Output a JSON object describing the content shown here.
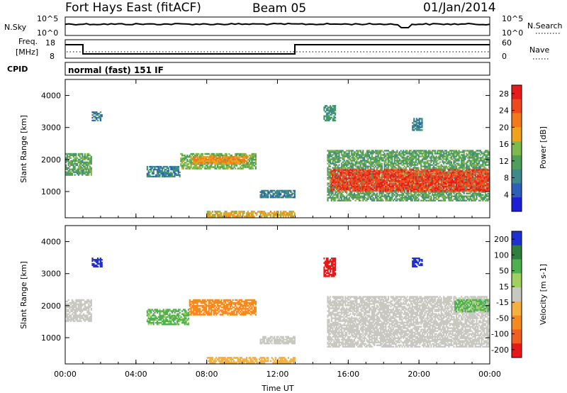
{
  "header": {
    "radar": "Fort Hays East (fitACF)",
    "beam": "Beam 05",
    "date": "01/Jan/2014"
  },
  "top_panel": {
    "left_label": "N.Sky",
    "left_ticks": [
      "10^5",
      "10^0"
    ],
    "right_label": "N.Search",
    "right_ticks": [
      "10^5",
      "10^0"
    ]
  },
  "freq_panel": {
    "left_label_1": "Freq.",
    "left_label_2": "[MHz]",
    "left_ticks": [
      "18",
      "8"
    ],
    "right_label": "Nave",
    "right_ticks": [
      "60",
      "0"
    ]
  },
  "cpid": {
    "label": "CPID",
    "text": "normal (fast) 151 IF"
  },
  "colors": {
    "power_scale": [
      "#1f1fd6",
      "#2b5fb8",
      "#3d8a8a",
      "#4f9f5a",
      "#7fb84b",
      "#f0a21e",
      "#f27a1a",
      "#ef4a1f",
      "#e81b1b"
    ],
    "velocity_scale": [
      "#1f2fd0",
      "#2e7e3e",
      "#4fb04f",
      "#9fd060",
      "#c8c8c0",
      "#f6b040",
      "#f58b1f",
      "#f2601f",
      "#e81818"
    ]
  },
  "chart_data": [
    {
      "type": "heatmap",
      "title": "",
      "xlabel": "Time UT",
      "ylabel": "Slant Range [km]",
      "x_ticks": [
        "00:00",
        "04:00",
        "08:00",
        "12:00",
        "16:00",
        "20:00",
        "00:00"
      ],
      "x_range_hours": [
        0,
        24
      ],
      "ylim": [
        180,
        4500
      ],
      "y_ticks": [
        1000,
        2000,
        3000,
        4000
      ],
      "colorbar": {
        "label": "Power [dB]",
        "ticks": [
          4,
          8,
          12,
          16,
          20,
          24,
          28
        ],
        "range": [
          0,
          30
        ]
      },
      "regions": [
        {
          "t0": 0.0,
          "t1": 1.5,
          "r0": 1500,
          "r1": 2200,
          "value": 12
        },
        {
          "t0": 1.5,
          "t1": 2.1,
          "r0": 3200,
          "r1": 3500,
          "value": 8
        },
        {
          "t0": 4.6,
          "t1": 6.5,
          "r0": 1450,
          "r1": 1800,
          "value": 8
        },
        {
          "t0": 6.5,
          "t1": 10.8,
          "r0": 1700,
          "r1": 2200,
          "value": 14
        },
        {
          "t0": 7.2,
          "t1": 10.3,
          "r0": 1850,
          "r1": 2100,
          "value": 20
        },
        {
          "t0": 11.0,
          "t1": 13.0,
          "r0": 800,
          "r1": 1050,
          "value": 8
        },
        {
          "t0": 14.6,
          "t1": 15.3,
          "r0": 3200,
          "r1": 3700,
          "value": 10
        },
        {
          "t0": 14.8,
          "t1": 24.0,
          "r0": 700,
          "r1": 2300,
          "value": 12
        },
        {
          "t0": 15.0,
          "t1": 24.0,
          "r0": 1000,
          "r1": 1700,
          "value": 26
        },
        {
          "t0": 19.6,
          "t1": 20.2,
          "r0": 2900,
          "r1": 3300,
          "value": 8
        },
        {
          "t0": 8.0,
          "t1": 13.0,
          "r0": 200,
          "r1": 400,
          "value": 18
        }
      ]
    },
    {
      "type": "heatmap",
      "title": "",
      "xlabel": "Time UT",
      "ylabel": "Slant Range [km]",
      "x_ticks": [
        "00:00",
        "04:00",
        "08:00",
        "12:00",
        "16:00",
        "20:00",
        "00:00"
      ],
      "x_range_hours": [
        0,
        24
      ],
      "ylim": [
        180,
        4500
      ],
      "y_ticks": [
        1000,
        2000,
        3000,
        4000
      ],
      "colorbar": {
        "label": "Velocity [m s-1]",
        "ticks": [
          200,
          100,
          50,
          15,
          -15,
          -50,
          -100,
          -200
        ]
      },
      "regions": [
        {
          "t0": 0.0,
          "t1": 1.5,
          "r0": 1500,
          "r1": 2200,
          "value": 0
        },
        {
          "t0": 1.5,
          "t1": 2.1,
          "r0": 3200,
          "r1": 3500,
          "value": 250
        },
        {
          "t0": 4.6,
          "t1": 7.0,
          "r0": 1400,
          "r1": 1900,
          "value": 60
        },
        {
          "t0": 7.0,
          "t1": 10.8,
          "r0": 1700,
          "r1": 2200,
          "value": -80
        },
        {
          "t0": 11.0,
          "t1": 13.0,
          "r0": 800,
          "r1": 1050,
          "value": 0
        },
        {
          "t0": 14.6,
          "t1": 15.3,
          "r0": 2900,
          "r1": 3500,
          "value": -250
        },
        {
          "t0": 14.8,
          "t1": 24.0,
          "r0": 700,
          "r1": 2300,
          "value": 0
        },
        {
          "t0": 19.6,
          "t1": 20.2,
          "r0": 3200,
          "r1": 3500,
          "value": 250
        },
        {
          "t0": 22.0,
          "t1": 24.0,
          "r0": 1800,
          "r1": 2200,
          "value": 60
        },
        {
          "t0": 8.0,
          "t1": 13.0,
          "r0": 200,
          "r1": 400,
          "value": -30
        }
      ]
    }
  ]
}
